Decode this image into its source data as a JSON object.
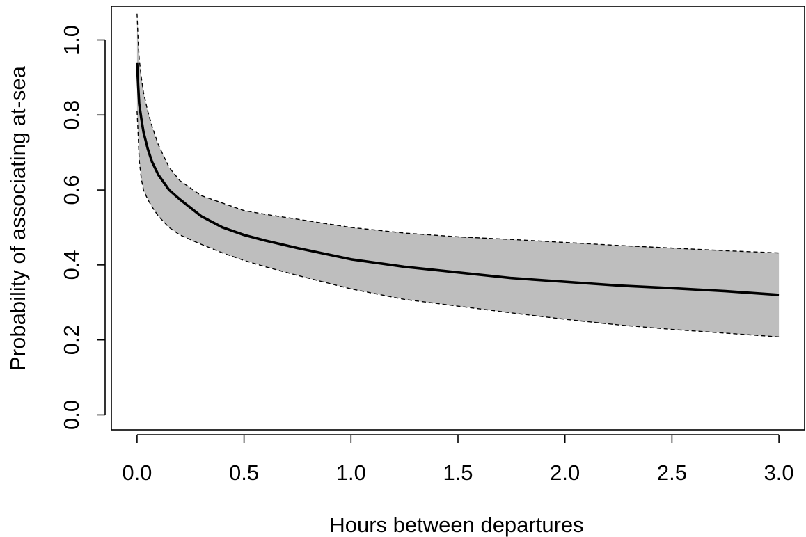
{
  "chart_data": {
    "type": "line",
    "title": "",
    "xlabel": "Hours between departures",
    "ylabel": "Probability of associating at-sea",
    "xlim": [
      -0.12,
      3.12
    ],
    "ylim": [
      -0.04,
      1.09
    ],
    "x_ticks": [
      0.0,
      0.5,
      1.0,
      1.5,
      2.0,
      2.5,
      3.0
    ],
    "x_tick_labels": [
      "0.0",
      "0.5",
      "1.0",
      "1.5",
      "2.0",
      "2.5",
      "3.0"
    ],
    "y_ticks": [
      0.0,
      0.2,
      0.4,
      0.6,
      0.8,
      1.0
    ],
    "y_tick_labels": [
      "0.0",
      "0.2",
      "0.4",
      "0.6",
      "0.8",
      "1.0"
    ],
    "grid": false,
    "legend": "none",
    "colors": {
      "band": "#bebebe",
      "line": "#000000",
      "bounds": "#000000"
    },
    "x": [
      0.0,
      0.005,
      0.01,
      0.02,
      0.03,
      0.05,
      0.07,
      0.1,
      0.15,
      0.2,
      0.3,
      0.4,
      0.5,
      0.6,
      0.75,
      1.0,
      1.25,
      1.5,
      1.75,
      2.0,
      2.25,
      2.5,
      2.75,
      3.0
    ],
    "series": [
      {
        "role": "estimate",
        "style": "solid",
        "values": [
          0.94,
          0.88,
          0.83,
          0.79,
          0.755,
          0.71,
          0.675,
          0.64,
          0.6,
          0.575,
          0.53,
          0.5,
          0.48,
          0.465,
          0.445,
          0.415,
          0.395,
          0.38,
          0.365,
          0.355,
          0.345,
          0.338,
          0.33,
          0.32
        ]
      },
      {
        "role": "upper-bound",
        "style": "dashed",
        "values": [
          1.07,
          1.0,
          0.95,
          0.9,
          0.86,
          0.81,
          0.77,
          0.72,
          0.66,
          0.625,
          0.585,
          0.565,
          0.545,
          0.535,
          0.522,
          0.5,
          0.485,
          0.475,
          0.468,
          0.46,
          0.452,
          0.445,
          0.438,
          0.432
        ]
      },
      {
        "role": "lower-bound",
        "style": "dashed",
        "values": [
          0.81,
          0.75,
          0.68,
          0.63,
          0.6,
          0.575,
          0.555,
          0.53,
          0.5,
          0.48,
          0.455,
          0.432,
          0.412,
          0.395,
          0.372,
          0.336,
          0.308,
          0.29,
          0.272,
          0.255,
          0.24,
          0.228,
          0.218,
          0.208
        ]
      }
    ]
  }
}
